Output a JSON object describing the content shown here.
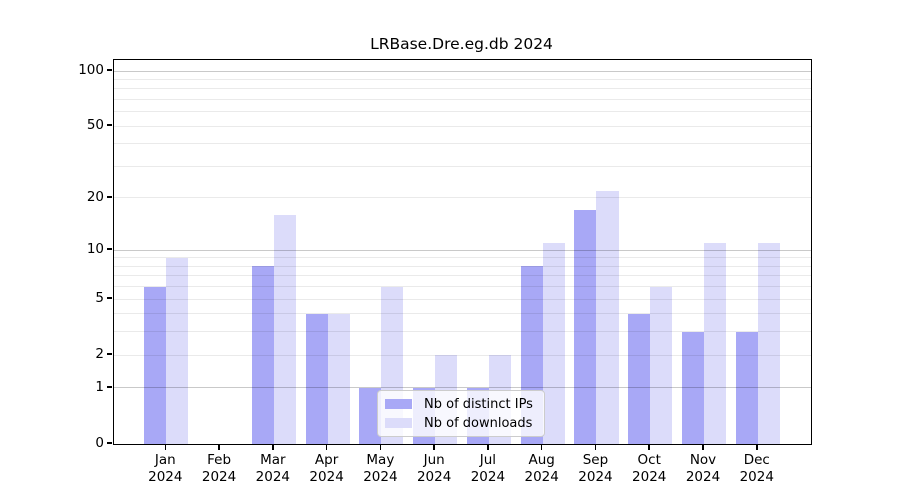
{
  "chart_data": {
    "type": "bar",
    "title": "LRBase.Dre.eg.db 2024",
    "categories": [
      "Jan",
      "Feb",
      "Mar",
      "Apr",
      "May",
      "Jun",
      "Jul",
      "Aug",
      "Sep",
      "Oct",
      "Nov",
      "Dec"
    ],
    "category_sub_label": "2024",
    "series": [
      {
        "name": "Nb of distinct IPs",
        "color": "#a8a8f6",
        "values": [
          6,
          0,
          8,
          4,
          1,
          1,
          1,
          8,
          17,
          4,
          3,
          3
        ]
      },
      {
        "name": "Nb of downloads",
        "color": "#dcdcfa",
        "values": [
          9,
          0,
          16,
          4,
          6,
          2,
          2,
          11,
          22,
          6,
          11,
          11
        ]
      }
    ],
    "yscale": "log1p",
    "ylim": [
      0,
      115
    ],
    "yticks": [
      0,
      1,
      2,
      5,
      10,
      20,
      50,
      100
    ],
    "major_gridlines": [
      1,
      10,
      100
    ],
    "minor_gridlines": [
      2,
      3,
      4,
      5,
      6,
      7,
      8,
      9,
      20,
      30,
      40,
      50,
      60,
      70,
      80,
      90
    ],
    "grid": true,
    "legend_position": "lower center",
    "background_color": "#ffffff"
  }
}
